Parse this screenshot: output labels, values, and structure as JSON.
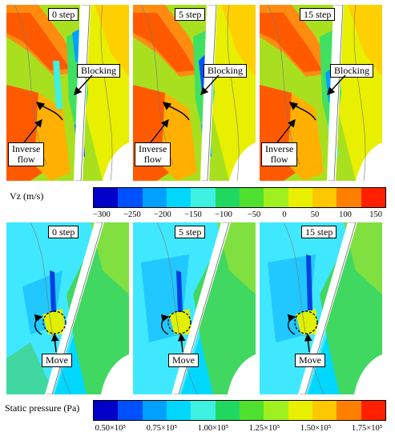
{
  "velocity_figure": {
    "panels": [
      {
        "step_label": "0 step",
        "blocking_label": "Blocking",
        "inverse_label_1": "Inverse",
        "inverse_label_2": "flow"
      },
      {
        "step_label": "5 step",
        "blocking_label": "Blocking",
        "inverse_label_1": "Inverse",
        "inverse_label_2": "flow"
      },
      {
        "step_label": "15 step",
        "blocking_label": "Blocking",
        "inverse_label_1": "Inverse",
        "inverse_label_2": "flow"
      }
    ],
    "colorbar": {
      "title": "Vz (m/s)",
      "ticks": [
        "−300",
        "−250",
        "−200",
        "−150",
        "−100",
        "−50",
        "0",
        "50",
        "100",
        "150"
      ]
    }
  },
  "pressure_figure": {
    "panels": [
      {
        "step_label": "0 step",
        "move_label": "Move"
      },
      {
        "step_label": "5 step",
        "move_label": "Move"
      },
      {
        "step_label": "15 step",
        "move_label": "Move"
      }
    ],
    "colorbar": {
      "title": "Static pressure (Pa)",
      "ticks": [
        "0.50×10⁵",
        "0.75×10⁵",
        "1.00×10⁵",
        "1.25×10⁵",
        "1.50×10⁵",
        "1.75×10⁵"
      ]
    }
  },
  "colors": {
    "colormap": [
      "#0000c8",
      "#0050ff",
      "#00a0ff",
      "#00d8ff",
      "#40f0e0",
      "#20d860",
      "#50e030",
      "#a0f020",
      "#e8f000",
      "#ffc800",
      "#ff8000",
      "#ff2000"
    ]
  }
}
